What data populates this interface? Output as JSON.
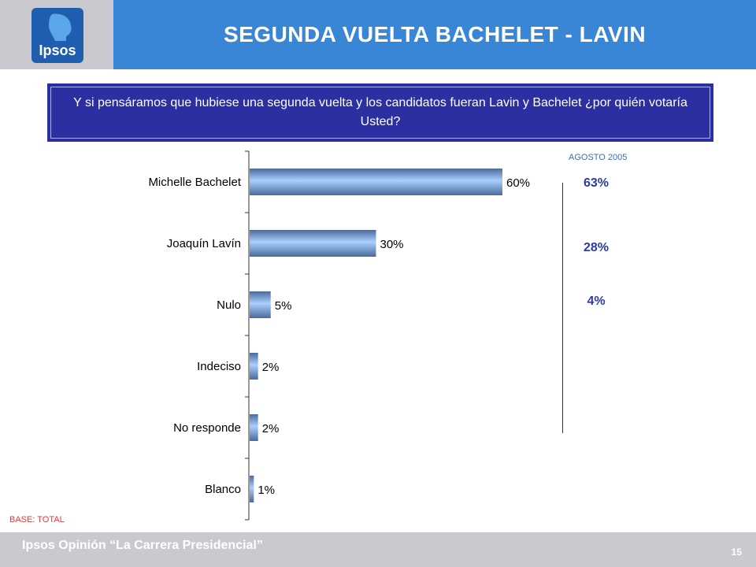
{
  "header": {
    "title": "SEGUNDA VUELTA BACHELET - LAVIN",
    "logo_text": "Ipsos"
  },
  "question": "Y si pensáramos que hubiese una segunda vuelta y los candidatos fueran Lavin y Bachelet ¿por quién votaría Usted?",
  "comparison": {
    "label": "AGOSTO 2005",
    "values": [
      "63%",
      "28%",
      "4%"
    ]
  },
  "base_label": "BASE: TOTAL",
  "footer": {
    "text": "Ipsos Opinión “La Carrera Presidencial”",
    "page": "15"
  },
  "colors": {
    "header_bg": "#3a86d6",
    "logo_bg": "#1f5eae",
    "question_bg": "#2b2fa1",
    "bar_light": "#a8d0ff",
    "bar_dark": "#4a6a9a"
  },
  "chart_data": {
    "type": "bar",
    "orientation": "horizontal",
    "categories": [
      "Michelle Bachelet",
      "Joaquín Lavín",
      "Nulo",
      "Indeciso",
      "No responde",
      "Blanco"
    ],
    "values": [
      60,
      30,
      5,
      2,
      2,
      1
    ],
    "value_labels": [
      "60%",
      "30%",
      "5%",
      "2%",
      "2%",
      "1%"
    ],
    "xlim": [
      0,
      100
    ],
    "grid": false,
    "legend": "none"
  }
}
